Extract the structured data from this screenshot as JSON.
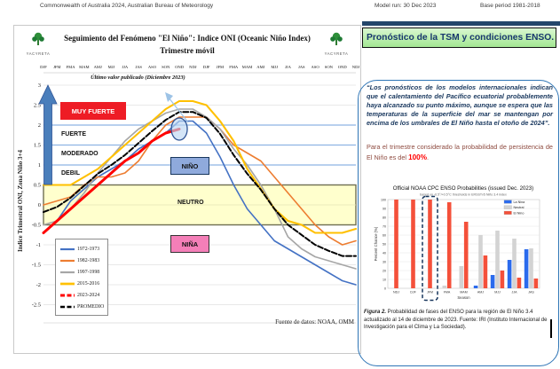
{
  "header": {
    "left": "Commonwealth of Australia 2024, Australian Bureau of Meteorology",
    "model_run": "Model run: 30 Dec 2023",
    "base_period": "Base period 1981-2018"
  },
  "left_chart": {
    "logo_text": "YACYRETA",
    "title_line1": "Seguimiento del Fenómeno \"El Niño\": Indice ONI (Oceanic Niño Index)",
    "title_line2": "Trimestre móvil",
    "annotation": "Último valor publicado  (Diciembre 2023)",
    "y_axis_label": "Indice Trimestral ONI, Zona Niño 3+4",
    "zone_labels": {
      "muy_fuerte": "MUY FUERTE",
      "fuerte": "FUERTE",
      "moderado": "MODERADO",
      "debil": "DEBIL",
      "nino": "NIÑO",
      "neutro": "NEUTRO",
      "nina": "NIÑA"
    },
    "source": "Fuente de datos: NOAA, OMM"
  },
  "right_panel": {
    "title": "Pronóstico de la TSM y condiciones ENSO.",
    "quote": "“Los pronósticos de los modelos internacionales indican que el calentamiento del Pacífico ecuatorial probablemente haya alcanzado su punto máximo, aunque se espera que las temperaturas de la superficie del mar se mantengan por encima de los umbrales de El Niño hasta el otoño de 2024”.",
    "statement_prefix": "Para el trimestre considerado la probabilidad de persistencia de El Niño es del ",
    "statement_value": "100%",
    "statement_suffix": ".",
    "figure_caption_bold": "Figura 2.",
    "figure_caption_rest": " Probabilidad de fases del ENSO para la región de El Niño 3.4 actualizado al 14 de diciembre de 2023. Fuente: IRI (Instituto Internacional de Investigación para el Clima y La Sociedad)."
  },
  "chart_data": [
    {
      "id": "oni-line-chart",
      "type": "line",
      "title": "Seguimiento del Fenómeno \"El Niño\": Indice ONI (Oceanic Niño Index) — Trimestre móvil",
      "ylabel": "Indice Trimestral ONI, Zona Niño 3+4",
      "ylim": [
        -2.5,
        3
      ],
      "y_ticks": [
        3,
        2.5,
        2,
        1.5,
        1,
        0.5,
        0,
        -0.5,
        -1,
        -1.5,
        -2,
        -2.5
      ],
      "threshold_lines": [
        2.0,
        1.5,
        1.0
      ],
      "neutral_band": [
        -0.5,
        0.5
      ],
      "x_labels": [
        "DJF",
        "JFM",
        "FMA",
        "MAM",
        "AMJ",
        "MJJ",
        "JJA",
        "JAS",
        "ASO",
        "SON",
        "OND",
        "NDJ",
        "DJF",
        "JFM",
        "FMA",
        "MAM",
        "AMJ",
        "MJJ",
        "JJA",
        "JAS",
        "ASO",
        "SON",
        "OND",
        "NDJ"
      ],
      "series": [
        {
          "name": "1972-1973",
          "color": "#4472c4",
          "width": 1.6,
          "dash": null,
          "values": [
            -0.7,
            -0.4,
            0.1,
            0.4,
            0.7,
            0.9,
            1.1,
            1.4,
            1.6,
            1.8,
            2.1,
            2.1,
            1.8,
            1.2,
            0.5,
            -0.1,
            -0.5,
            -0.9,
            -1.1,
            -1.3,
            -1.5,
            -1.7,
            -1.9,
            -2.0
          ]
        },
        {
          "name": "1982-1983",
          "color": "#ed7d31",
          "width": 1.6,
          "dash": null,
          "values": [
            0.0,
            0.1,
            0.2,
            0.5,
            0.7,
            0.7,
            0.8,
            1.1,
            1.6,
            2.0,
            2.2,
            2.2,
            2.2,
            1.9,
            1.5,
            1.3,
            1.1,
            0.7,
            0.3,
            -0.1,
            -0.5,
            -0.8,
            -1.0,
            -0.9
          ]
        },
        {
          "name": "1997-1998",
          "color": "#a6a6a6",
          "width": 1.6,
          "dash": null,
          "values": [
            -0.5,
            -0.4,
            -0.1,
            0.3,
            0.8,
            1.2,
            1.6,
            1.9,
            2.1,
            2.3,
            2.4,
            2.4,
            2.2,
            1.9,
            1.4,
            1.0,
            0.5,
            -0.1,
            -0.8,
            -1.1,
            -1.3,
            -1.4,
            -1.5,
            -1.6
          ]
        },
        {
          "name": "2015-2016",
          "color": "#ffc000",
          "width": 2.1,
          "dash": null,
          "values": [
            0.5,
            0.5,
            0.5,
            0.7,
            0.9,
            1.2,
            1.5,
            1.8,
            2.1,
            2.4,
            2.6,
            2.6,
            2.5,
            2.1,
            1.6,
            0.9,
            0.4,
            -0.1,
            -0.4,
            -0.5,
            -0.7,
            -0.7,
            -0.7,
            -0.6
          ]
        },
        {
          "name": "2023-2024",
          "color": "#ff0000",
          "width": 3,
          "dash": null,
          "values": [
            -0.7,
            -0.4,
            -0.1,
            0.2,
            0.5,
            0.8,
            1.1,
            1.3,
            1.6,
            1.8,
            1.9
          ]
        },
        {
          "name": "PROMEDIO",
          "color": "#000000",
          "width": 2,
          "dash": "6,2.5",
          "values": [
            -0.18,
            -0.05,
            0.18,
            0.48,
            0.78,
            1.0,
            1.25,
            1.55,
            1.85,
            2.13,
            2.33,
            2.33,
            2.18,
            1.78,
            1.25,
            0.78,
            0.38,
            -0.1,
            -0.5,
            -0.75,
            -1.0,
            -1.15,
            -1.28,
            -1.28
          ]
        }
      ],
      "marked_series": "2023-2024",
      "annotation": "Último valor publicado  (Diciembre 2023)",
      "source": "Fuente de datos: NOAA, OMM"
    },
    {
      "id": "enso-probability-chart",
      "type": "bar",
      "title": "Official NOAA CPC ENSO Probabilities (issued Dec. 2023)",
      "subtitle": "based on -0.5°/+0.5°C thresholds in ERSSTv5 Niño 3.4 index",
      "xlabel": "Season",
      "ylabel": "Percent Chance (%)",
      "ylim": [
        0,
        100
      ],
      "categories": [
        "NDJ",
        "DJF",
        "JFM",
        "FMA",
        "MAM",
        "AMJ",
        "MJJ",
        "JJA",
        "JAS"
      ],
      "series": [
        {
          "name": "La Nina",
          "color": "#2b6bed",
          "values": [
            0,
            0,
            0,
            0,
            0,
            3,
            15,
            32,
            44
          ]
        },
        {
          "name": "Neutral",
          "color": "#d3d3d3",
          "values": [
            0,
            0,
            0,
            3,
            25,
            60,
            65,
            56,
            45
          ]
        },
        {
          "name": "El Nino",
          "color": "#f4503a",
          "values": [
            100,
            100,
            100,
            97,
            75,
            37,
            20,
            12,
            11
          ]
        }
      ],
      "highlight_category": "JFM",
      "legend_position": "top-right"
    }
  ]
}
